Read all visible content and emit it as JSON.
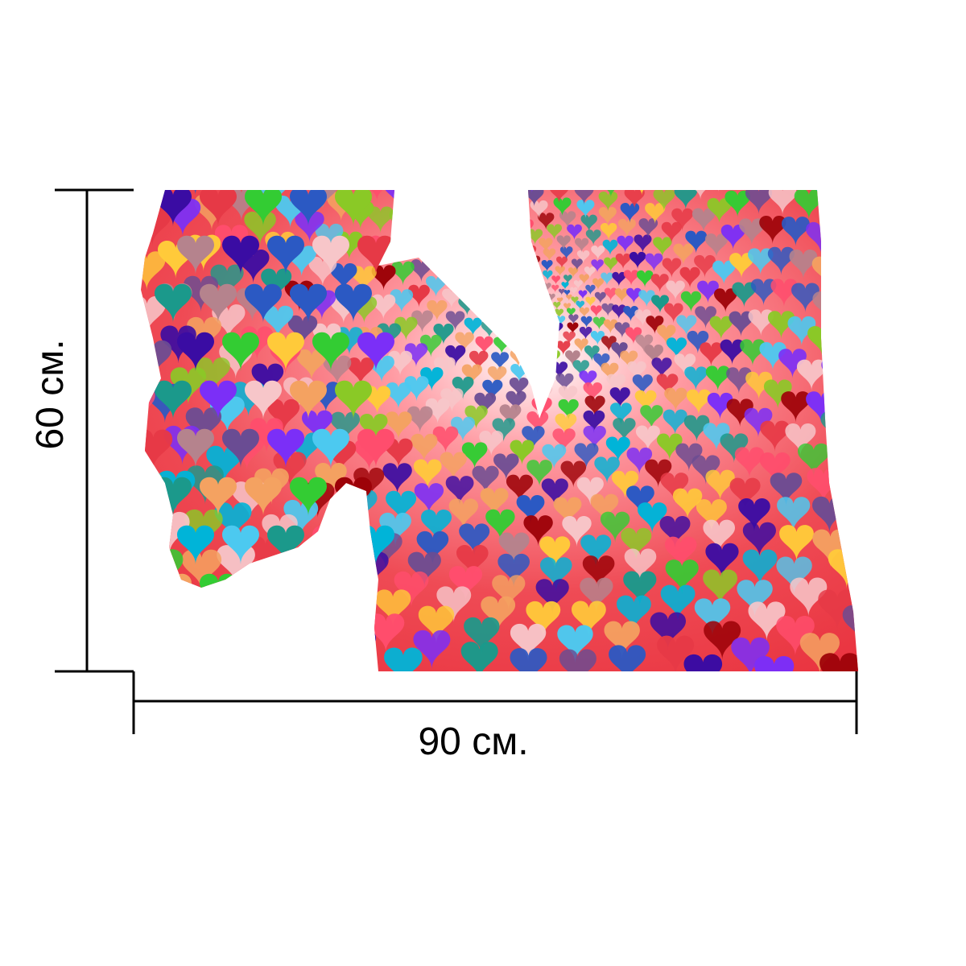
{
  "dimensions": {
    "width_label": "90 см.",
    "height_label": "60 см."
  },
  "artwork": {
    "icon": "heart-pattern",
    "palette": [
      "#e63946",
      "#f7c6c9",
      "#ff4d6d",
      "#7b2ff7",
      "#2b59c3",
      "#1b998b",
      "#33cc33",
      "#f4a261",
      "#b5838d",
      "#6a4c93",
      "#8ac926",
      "#ffca3a",
      "#4cc9f0",
      "#9d0208",
      "#3a0ca3",
      "#00b4d8"
    ]
  }
}
